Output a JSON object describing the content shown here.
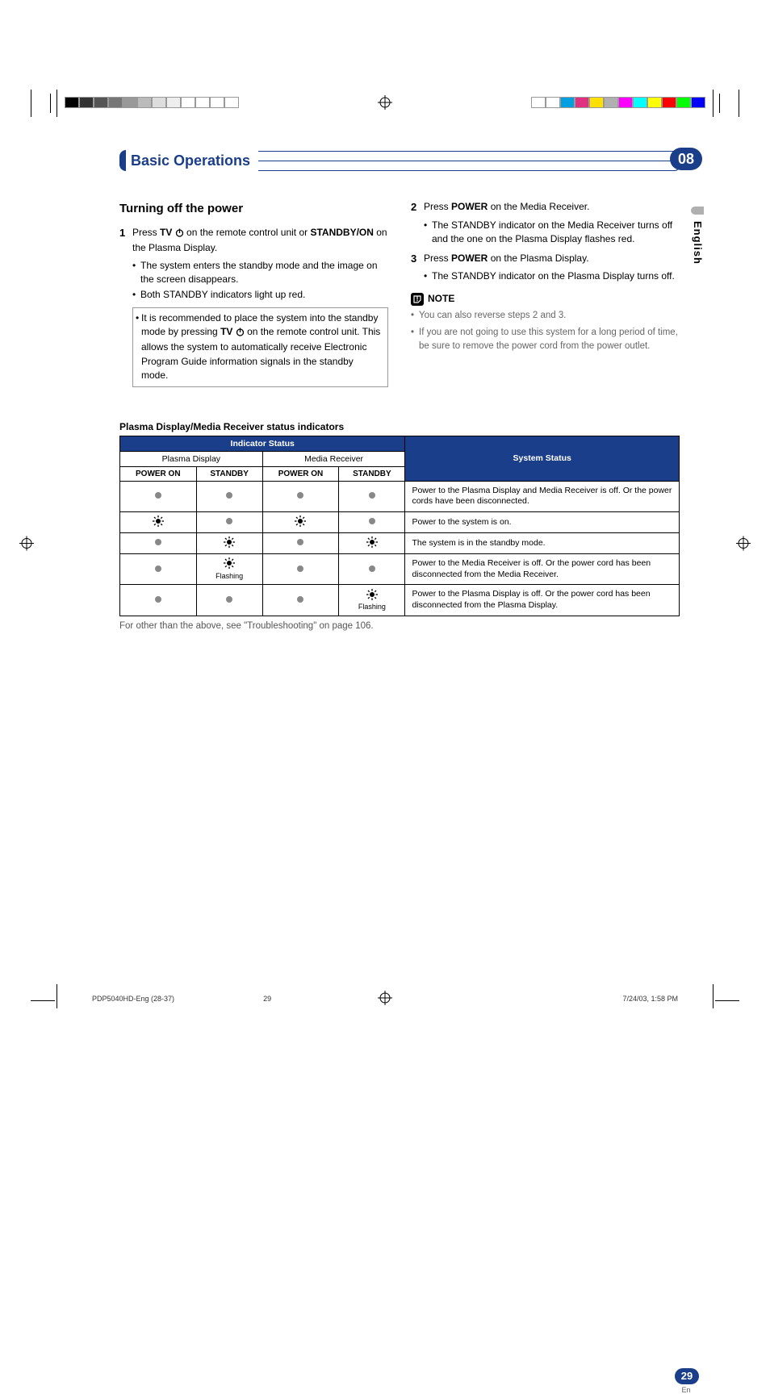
{
  "colors": {
    "accent": "#1a3e8a",
    "text": "#000000",
    "muted": "#666666",
    "indicator_off": "#888888"
  },
  "reg_colors_left": [
    "#000000",
    "#333333",
    "#555555",
    "#777777",
    "#999999",
    "#bbbbbb",
    "#dddddd",
    "#eeeeee",
    "#ffffff",
    "#ffffff",
    "#ffffff",
    "#ffffff"
  ],
  "reg_colors_right": [
    "#ffffff",
    "#ffffff",
    "#00a0e0",
    "#e03080",
    "#ffe000",
    "#b0b0b0",
    "#ff00ff",
    "#00ffff",
    "#ffff00",
    "#ff0000",
    "#00ff00",
    "#0000ff"
  ],
  "chapter": {
    "title": "Basic Operations",
    "number": "08"
  },
  "side": {
    "language": "English"
  },
  "section": {
    "title": "Turning off the power"
  },
  "left": {
    "step1": {
      "n": "1",
      "pre": "Press ",
      "tv": "TV",
      "post": " on the remote control unit or ",
      "standby": "STANDBY/ON",
      "post2": " on the Plasma Display."
    },
    "step1_bullets": [
      "The system enters the standby mode and the image on the screen disappears.",
      "Both STANDBY indicators light up red."
    ],
    "tip": {
      "pre": "It is recommended to place the system into the standby mode by pressing ",
      "tv": "TV",
      "post": " on the remote control unit. This allows the system to automatically receive Electronic Program Guide information signals in the standby mode."
    }
  },
  "right": {
    "step2": {
      "n": "2",
      "pre": "Press ",
      "power": "POWER",
      "post": " on the Media Receiver."
    },
    "step2_bullets": [
      "The STANDBY indicator on the Media Receiver turns off and the one on the Plasma Display flashes red."
    ],
    "step3": {
      "n": "3",
      "pre": "Press ",
      "power": "POWER",
      "post": " on the Plasma Display."
    },
    "step3_bullets": [
      "The STANDBY indicator on the Plasma Display turns off."
    ],
    "note_label": "NOTE",
    "notes": [
      "You can also reverse steps 2 and 3.",
      "If you are not going to use this system for a long period of time, be sure to remove the power cord from the power outlet."
    ]
  },
  "table": {
    "title": "Plasma Display/Media Receiver status indicators",
    "hdr_indicator": "Indicator Status",
    "hdr_system": "System Status",
    "hdr_plasma": "Plasma Display",
    "hdr_media": "Media Receiver",
    "cols": [
      "POWER ON",
      "STANDBY",
      "POWER ON",
      "STANDBY"
    ],
    "flashing": "Flashing",
    "rows": [
      {
        "cells": [
          "off",
          "off",
          "off",
          "off"
        ],
        "desc": "Power to the Plasma Display and Media Receiver is off.  Or the power cords have been disconnected."
      },
      {
        "cells": [
          "on",
          "off",
          "on",
          "off"
        ],
        "desc": "Power to the system is on."
      },
      {
        "cells": [
          "off",
          "on",
          "off",
          "on"
        ],
        "desc": "The system is in the standby mode."
      },
      {
        "cells": [
          "off",
          "flash",
          "off",
          "off"
        ],
        "desc": "Power to the Media Receiver is off. Or the power cord has been disconnected from the Media Receiver."
      },
      {
        "cells": [
          "off",
          "off",
          "off",
          "flash"
        ],
        "desc": "Power to the Plasma Display is off. Or the power cord has been disconnected from the Plasma Display."
      }
    ],
    "footnote": "For other than the above, see \"Troubleshooting\" on page 106."
  },
  "page_number": {
    "num": "29",
    "lang": "En"
  },
  "footer": {
    "doc": "PDP5040HD-Eng (28-37)",
    "pg": "29",
    "ts": "7/24/03, 1:58 PM"
  }
}
